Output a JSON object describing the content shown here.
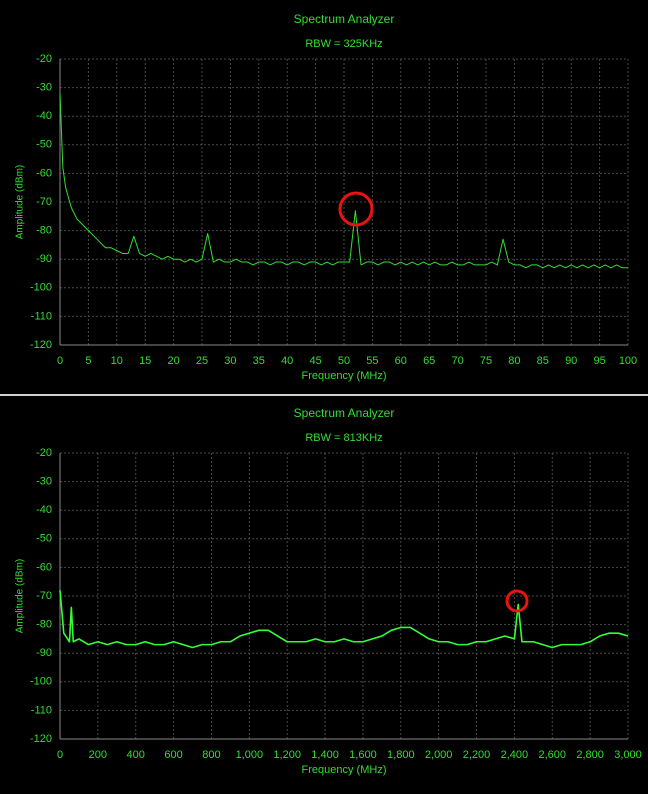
{
  "chart_data": [
    {
      "type": "line",
      "title": "Spectrum Analyzer",
      "subtitle": "RBW = 325KHz",
      "x_label": "Frequency (MHz)",
      "y_label": "Amplitude (dBm)",
      "color": "#33dd33",
      "grid": true,
      "xlim": [
        0,
        100
      ],
      "ylim": [
        -120,
        -20
      ],
      "xticks": [
        0,
        5,
        10,
        15,
        20,
        25,
        30,
        35,
        40,
        45,
        50,
        55,
        60,
        65,
        70,
        75,
        80,
        85,
        90,
        95,
        100
      ],
      "yticks": [
        -20,
        -30,
        -40,
        -50,
        -60,
        -70,
        -80,
        -90,
        -100,
        -110,
        -120
      ],
      "x": [
        0,
        0.5,
        1,
        2,
        3,
        4,
        5,
        6,
        7,
        8,
        9,
        10,
        11,
        12,
        13,
        14,
        15,
        16,
        17,
        18,
        19,
        20,
        21,
        22,
        23,
        24,
        25,
        26,
        27,
        28,
        29,
        30,
        31,
        32,
        33,
        34,
        35,
        36,
        37,
        38,
        39,
        40,
        41,
        42,
        43,
        44,
        45,
        46,
        47,
        48,
        49,
        50,
        51,
        52,
        53,
        54,
        55,
        56,
        57,
        58,
        59,
        60,
        61,
        62,
        63,
        64,
        65,
        66,
        67,
        68,
        69,
        70,
        71,
        72,
        73,
        74,
        75,
        76,
        77,
        78,
        79,
        80,
        81,
        82,
        83,
        84,
        85,
        86,
        87,
        88,
        89,
        90,
        91,
        92,
        93,
        94,
        95,
        96,
        97,
        98,
        99,
        100
      ],
      "values": [
        -32,
        -58,
        -65,
        -72,
        -76,
        -78,
        -80,
        -82,
        -84,
        -86,
        -86,
        -87,
        -88,
        -88,
        -82,
        -88,
        -89,
        -88,
        -89,
        -90,
        -89,
        -90,
        -90,
        -91,
        -90,
        -91,
        -90,
        -81,
        -91,
        -90,
        -91,
        -91,
        -90,
        -91,
        -91,
        -92,
        -91,
        -91,
        -92,
        -91,
        -91,
        -92,
        -91,
        -91,
        -92,
        -91,
        -91,
        -92,
        -91,
        -92,
        -91,
        -91,
        -91,
        -73,
        -92,
        -91,
        -91,
        -92,
        -91,
        -91,
        -92,
        -91,
        -92,
        -91,
        -92,
        -91,
        -92,
        -91,
        -92,
        -92,
        -91,
        -92,
        -92,
        -91,
        -92,
        -92,
        -92,
        -91,
        -92,
        -83,
        -91,
        -92,
        -92,
        -93,
        -92,
        -92,
        -93,
        -92,
        -93,
        -92,
        -93,
        -92,
        -93,
        -92,
        -93,
        -92,
        -93,
        -92,
        -93,
        -92,
        -93,
        -93
      ]
    },
    {
      "type": "line",
      "title": "Spectrum Analyzer",
      "subtitle": "RBW = 813KHz",
      "x_label": "Frequency (MHz)",
      "y_label": "Amplitude (dBm)",
      "color": "#33ff33",
      "grid": true,
      "xlim": [
        0,
        3000
      ],
      "ylim": [
        -120,
        -20
      ],
      "xticks": [
        0,
        200,
        400,
        600,
        800,
        {
          "value": 1000,
          "label": "1,000"
        },
        {
          "value": 1200,
          "label": "1,200"
        },
        {
          "value": 1400,
          "label": "1,400"
        },
        {
          "value": 1600,
          "label": "1,600"
        },
        {
          "value": 1800,
          "label": "1,800"
        },
        {
          "value": 2000,
          "label": "2,000"
        },
        {
          "value": 2200,
          "label": "2,200"
        },
        {
          "value": 2400,
          "label": "2,400"
        },
        {
          "value": 2600,
          "label": "2,600"
        },
        {
          "value": 2800,
          "label": "2,800"
        },
        {
          "value": 3000,
          "label": "3,000"
        }
      ],
      "yticks": [
        -20,
        -30,
        -40,
        -50,
        -60,
        -70,
        -80,
        -90,
        -100,
        -110,
        -120
      ],
      "x": [
        0,
        20,
        50,
        60,
        70,
        100,
        150,
        200,
        250,
        300,
        350,
        400,
        450,
        500,
        550,
        600,
        650,
        700,
        750,
        800,
        850,
        900,
        950,
        1000,
        1050,
        1100,
        1150,
        1200,
        1250,
        1300,
        1350,
        1400,
        1450,
        1500,
        1550,
        1600,
        1650,
        1700,
        1750,
        1800,
        1850,
        1900,
        1950,
        2000,
        2050,
        2100,
        2150,
        2200,
        2250,
        2300,
        2350,
        2400,
        2420,
        2440,
        2450,
        2500,
        2550,
        2600,
        2650,
        2700,
        2750,
        2800,
        2850,
        2900,
        2950,
        3000
      ],
      "values": [
        -68,
        -83,
        -86,
        -74,
        -86,
        -85,
        -87,
        -86,
        -87,
        -86,
        -87,
        -87,
        -86,
        -87,
        -87,
        -86,
        -87,
        -88,
        -87,
        -87,
        -86,
        -86,
        -84,
        -83,
        -82,
        -82,
        -84,
        -86,
        -86,
        -86,
        -85,
        -86,
        -86,
        -85,
        -86,
        -86,
        -85,
        -84,
        -82,
        -81,
        -81,
        -83,
        -85,
        -86,
        -86,
        -87,
        -87,
        -86,
        -86,
        -85,
        -84,
        -85,
        -73,
        -86,
        -86,
        -86,
        -87,
        -88,
        -87,
        -87,
        -87,
        -86,
        -84,
        -83,
        -83,
        -84
      ]
    }
  ]
}
